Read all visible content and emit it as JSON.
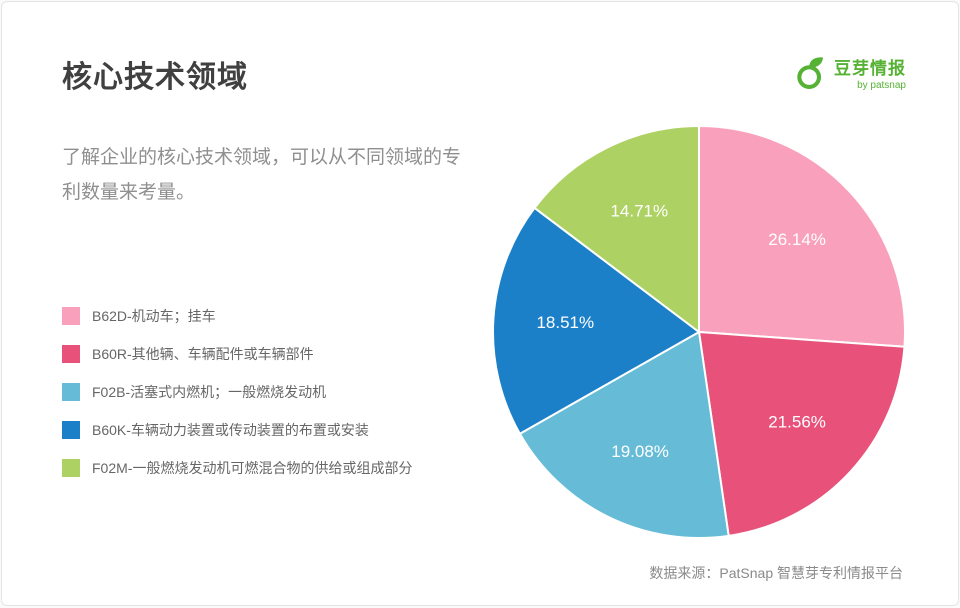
{
  "header": {
    "title": "核心技术领域",
    "logo": {
      "name": "豆芽情报",
      "byline": "by patsnap",
      "brand_color": "#56b234"
    }
  },
  "description": "了解企业的核心技术领域，可以从不同领域的专利数量来考量。",
  "footer": {
    "source": "数据来源：PatSnap 智慧芽专利情报平台"
  },
  "chart_data": {
    "type": "pie",
    "title": "核心技术领域",
    "start": "top",
    "direction": "clockwise",
    "legend_position": "left",
    "label_color": "#ffffff",
    "slices": [
      {
        "label": "B62D-机动车；挂车",
        "value": 26.14,
        "display": "26.14%",
        "color": "#f9a1bc"
      },
      {
        "label": "B60R-其他辆、车辆配件或车辆部件",
        "value": 21.56,
        "display": "21.56%",
        "color": "#e8527a"
      },
      {
        "label": "F02B-活塞式内燃机；一般燃烧发动机",
        "value": 19.08,
        "display": "19.08%",
        "color": "#66bcd6"
      },
      {
        "label": "B60K-车辆动力装置或传动装置的布置或安装",
        "value": 18.51,
        "display": "18.51%",
        "color": "#1c80c9"
      },
      {
        "label": "F02M-一般燃烧发动机可燃混合物的供给或组成部分",
        "value": 14.71,
        "display": "14.71%",
        "color": "#aed164"
      }
    ]
  }
}
